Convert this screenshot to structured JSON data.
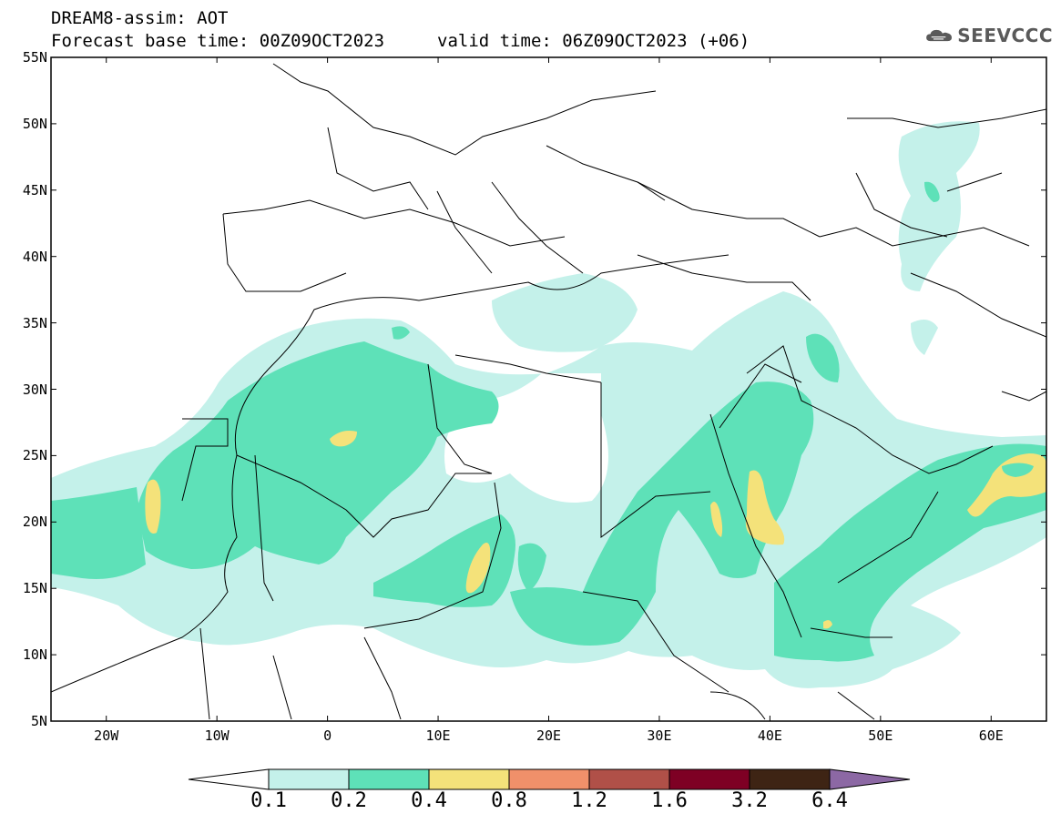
{
  "header": {
    "title": "DREAM8-assim: AOT",
    "base_time": "Forecast base time: 00Z09OCT2023",
    "valid_time": "valid time: 06Z09OCT2023 (+06)",
    "logo_text": "SEEVCCC",
    "logo_icon": "cloud-icon"
  },
  "map": {
    "latitude_labels": [
      "55N",
      "50N",
      "45N",
      "40N",
      "35N",
      "30N",
      "25N",
      "20N",
      "15N",
      "10N",
      "5N"
    ],
    "longitude_labels": [
      "20W",
      "10W",
      "0",
      "10E",
      "20E",
      "30E",
      "40E",
      "50E",
      "60E"
    ],
    "extent": {
      "lon_min": -25,
      "lon_max": 65,
      "lat_min": 5,
      "lat_max": 55
    }
  },
  "colorbar": {
    "labels": [
      "0.1",
      "0.2",
      "0.4",
      "0.8",
      "1.2",
      "1.6",
      "3.2",
      "6.4"
    ],
    "colors": [
      "#ffffff",
      "#c4f1ea",
      "#5ee1b8",
      "#f4e27a",
      "#f0906a",
      "#b05048",
      "#7e0024",
      "#3e2414",
      "#8c68a4"
    ]
  }
}
